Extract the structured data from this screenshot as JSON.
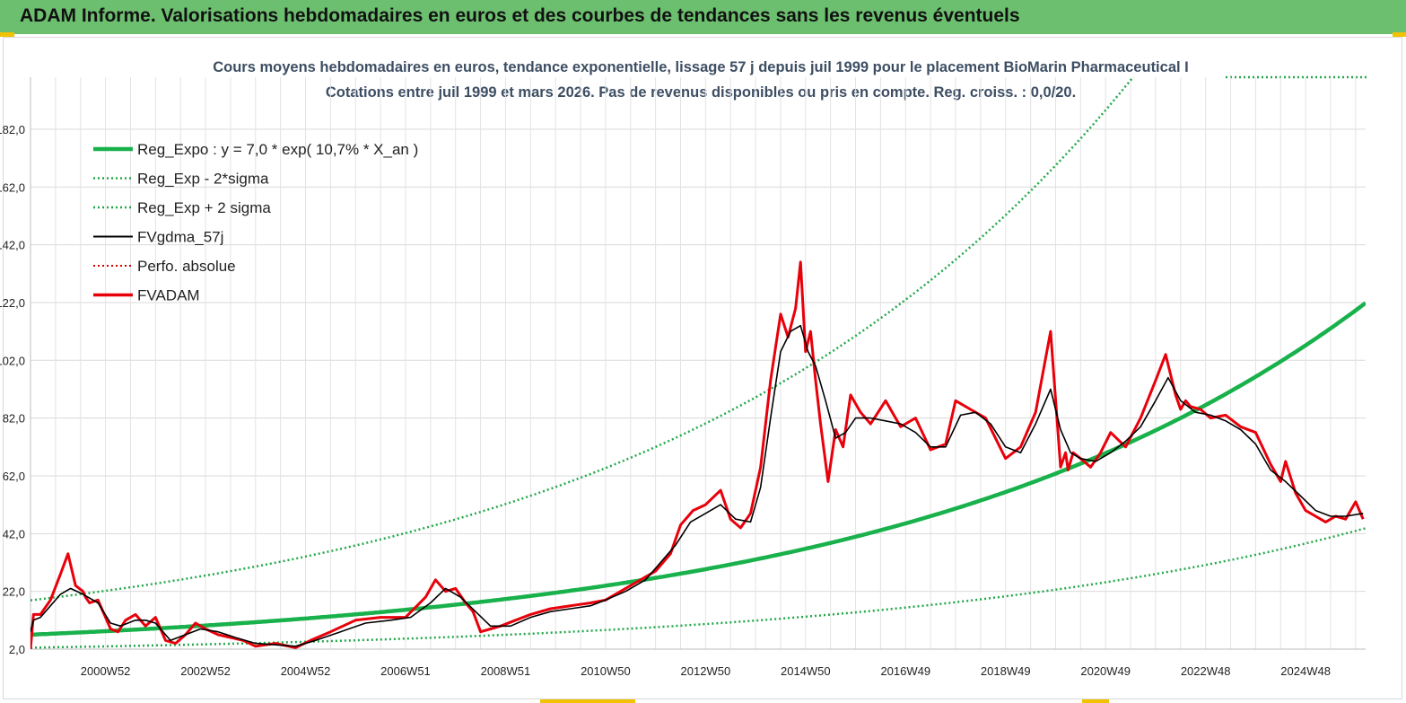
{
  "header": {
    "title": "ADAM Informe. Valorisations hebdomadaires en euros et des courbes de tendances sans les revenus éventuels"
  },
  "colors": {
    "header_bg": "#6cbf6f",
    "accent": "#f2c200",
    "trend": "#18b14b",
    "band": "#22a84a",
    "gdma": "#000000",
    "adam": "#e8000b",
    "perfo": "#d40000"
  },
  "chart_data": {
    "type": "line",
    "title": "Cours moyens hebdomadaires en euros, tendance exponentielle, lissage 57 j depuis juil 1999 pour le placement BioMarin Pharmaceutical I",
    "subtitle": "Cotations entre juil 1999 et mars 2026. Pas de revenus disponibles ou pris en compte. Reg. croiss. : 0,0/20.",
    "xlabel": "",
    "ylabel": "",
    "ylim": [
      2,
      200
    ],
    "y_ticks": [
      "182,0",
      "162,0",
      "142,0",
      "122,0",
      "102,0",
      "82,0",
      "62,0",
      "42,0",
      "22,0",
      "2,0"
    ],
    "x_ticks": [
      "2000W52",
      "2002W52",
      "2004W52",
      "2006W51",
      "2008W51",
      "2010W50",
      "2012W50",
      "2014W50",
      "2016W49",
      "2018W49",
      "2020W49",
      "2022W48",
      "2024W48"
    ],
    "x_range": [
      1999.5,
      2026.2
    ],
    "grid": true,
    "legend_position": "top-left",
    "legend": [
      {
        "label": "Reg_Expo : y = 7,0 * exp( 10,7% *  X_an )",
        "style": "solid-thick",
        "color": "#18b14b"
      },
      {
        "label": "Reg_Exp - 2*sigma",
        "style": "dotted",
        "color": "#22a84a"
      },
      {
        "label": "Reg_Exp + 2 sigma",
        "style": "dotted",
        "color": "#22a84a"
      },
      {
        "label": "FVgdma_57j",
        "style": "solid-thin",
        "color": "#000000"
      },
      {
        "label": "Perfo. absolue",
        "style": "dotted",
        "color": "#d40000"
      },
      {
        "label": "FVADAM",
        "style": "solid",
        "color": "#e8000b"
      }
    ],
    "trend": {
      "a": 7.0,
      "rate": 0.107,
      "x0": 1999.5
    },
    "band": {
      "lower_factor": 0.36,
      "upper_factor": 2.7
    },
    "series": [
      {
        "name": "FVADAM",
        "x": [
          1999.5,
          1999.56,
          1999.7,
          1999.9,
          2000.1,
          2000.25,
          2000.4,
          2000.55,
          2000.6,
          2000.68,
          2000.85,
          2001.1,
          2001.25,
          2001.4,
          2001.6,
          2001.8,
          2002.0,
          2002.2,
          2002.4,
          2002.6,
          2002.8,
          2003.0,
          2003.25,
          2003.5,
          2003.75,
          2004.0,
          2004.4,
          2004.8,
          2005.1,
          2005.5,
          2006.0,
          2006.5,
          2007.0,
          2007.4,
          2007.6,
          2007.8,
          2008.0,
          2008.2,
          2008.35,
          2008.5,
          2008.7,
          2008.9,
          2009.2,
          2009.5,
          2009.9,
          2010.3,
          2010.7,
          2011.0,
          2011.3,
          2011.7,
          2012.0,
          2012.3,
          2012.5,
          2012.75,
          2013.0,
          2013.3,
          2013.5,
          2013.7,
          2013.9,
          2014.1,
          2014.3,
          2014.5,
          2014.65,
          2014.8,
          2014.9,
          2015.0,
          2015.1,
          2015.2,
          2015.3,
          2015.45,
          2015.6,
          2015.75,
          2015.9,
          2016.1,
          2016.3,
          2016.6,
          2016.9,
          2017.2,
          2017.5,
          2017.8,
          2018.0,
          2018.3,
          2018.6,
          2019.0,
          2019.3,
          2019.6,
          2019.9,
          2020.1,
          2020.2,
          2020.25,
          2020.35,
          2020.5,
          2020.7,
          2020.9,
          2021.1,
          2021.4,
          2021.7,
          2022.0,
          2022.2,
          2022.4,
          2022.5,
          2022.6,
          2022.7,
          2022.9,
          2023.1,
          2023.4,
          2023.7,
          2024.0,
          2024.3,
          2024.5,
          2024.6,
          2024.8,
          2025.0,
          2025.2,
          2025.4,
          2025.6,
          2025.8,
          2026.0,
          2026.15
        ],
        "values": [
          2.0,
          14.0,
          14.0,
          19.0,
          28.0,
          35.0,
          24.0,
          22.0,
          20.0,
          18.0,
          19.0,
          9.0,
          8.0,
          12.0,
          14.0,
          10.0,
          13.0,
          5.0,
          4.0,
          7.0,
          11.0,
          9.0,
          7.0,
          6.0,
          5.0,
          3.0,
          4.0,
          2.5,
          5.0,
          8.0,
          12.0,
          13.0,
          13.0,
          20.0,
          26.0,
          22.0,
          23.0,
          18.0,
          15.0,
          8.0,
          9.0,
          10.0,
          12.0,
          14.0,
          16.0,
          17.0,
          18.0,
          19.0,
          22.0,
          26.0,
          29.0,
          35.0,
          45.0,
          50.0,
          52.0,
          57.0,
          47.0,
          44.0,
          49.0,
          65.0,
          95.0,
          118.0,
          110.0,
          120.0,
          136.0,
          105.0,
          112.0,
          95.0,
          80.0,
          60.0,
          78.0,
          72.0,
          90.0,
          84.0,
          80.0,
          88.0,
          79.0,
          82.0,
          71.0,
          73.0,
          88.0,
          85.0,
          82.0,
          68.0,
          72.0,
          84.0,
          112.0,
          65.0,
          70.0,
          64.0,
          70.0,
          68.0,
          65.0,
          70.0,
          77.0,
          72.0,
          82.0,
          95.0,
          104.0,
          90.0,
          85.0,
          88.0,
          86.0,
          85.0,
          82.0,
          83.0,
          79.0,
          77.0,
          66.0,
          60.0,
          67.0,
          56.0,
          50.0,
          48.0,
          46.0,
          48.0,
          47.0,
          53.0,
          47.0
        ]
      },
      {
        "name": "FVgdma_57j",
        "x": [
          1999.5,
          1999.56,
          1999.7,
          1999.9,
          2000.1,
          2000.3,
          2000.55,
          2000.85,
          2001.1,
          2001.3,
          2001.6,
          2001.8,
          2002.0,
          2002.3,
          2002.6,
          2002.9,
          2003.25,
          2003.6,
          2004.0,
          2004.4,
          2004.8,
          2005.2,
          2005.7,
          2006.2,
          2006.7,
          2007.1,
          2007.5,
          2007.8,
          2008.1,
          2008.4,
          2008.7,
          2009.1,
          2009.5,
          2009.9,
          2010.3,
          2010.7,
          2011.0,
          2011.4,
          2011.8,
          2012.1,
          2012.4,
          2012.7,
          2013.0,
          2013.3,
          2013.6,
          2013.9,
          2014.1,
          2014.3,
          2014.5,
          2014.7,
          2014.9,
          2015.05,
          2015.2,
          2015.4,
          2015.6,
          2015.8,
          2016.0,
          2016.3,
          2016.6,
          2016.9,
          2017.2,
          2017.5,
          2017.8,
          2018.1,
          2018.4,
          2018.7,
          2019.0,
          2019.3,
          2019.6,
          2019.9,
          2020.1,
          2020.3,
          2020.5,
          2020.8,
          2021.1,
          2021.4,
          2021.7,
          2022.0,
          2022.25,
          2022.5,
          2022.8,
          2023.1,
          2023.4,
          2023.7,
          2024.0,
          2024.3,
          2024.6,
          2024.9,
          2025.2,
          2025.5,
          2025.8,
          2026.15
        ],
        "values": [
          8.0,
          12.0,
          13.0,
          17.0,
          21.0,
          23.0,
          21.0,
          18.0,
          11.0,
          10.0,
          12.0,
          12.0,
          11.0,
          5.0,
          7.0,
          9.0,
          8.0,
          6.0,
          4.0,
          3.5,
          3.0,
          5.0,
          8.0,
          11.0,
          12.0,
          13.0,
          18.0,
          23.0,
          20.0,
          15.0,
          10.0,
          10.0,
          13.0,
          15.0,
          16.0,
          17.0,
          19.0,
          22.0,
          26.0,
          32.0,
          38.0,
          46.0,
          49.0,
          52.0,
          47.0,
          46.0,
          58.0,
          82.0,
          105.0,
          112.0,
          114.0,
          105.0,
          100.0,
          88.0,
          75.0,
          77.0,
          82.0,
          82.0,
          81.0,
          80.0,
          77.0,
          72.0,
          72.0,
          83.0,
          84.0,
          80.0,
          72.0,
          70.0,
          80.0,
          92.0,
          78.0,
          70.0,
          68.0,
          67.0,
          70.0,
          74.0,
          79.0,
          88.0,
          96.0,
          88.0,
          84.0,
          83.0,
          81.0,
          78.0,
          73.0,
          64.0,
          60.0,
          55.0,
          50.0,
          48.0,
          48.0,
          49.0
        ]
      }
    ]
  }
}
